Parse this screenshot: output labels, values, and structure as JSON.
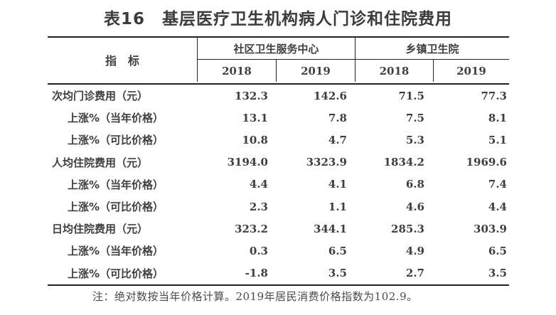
{
  "title": "表16　基层医疗卫生机构病人门诊和住院费用",
  "table": {
    "indicator_header": "指　标",
    "groups": [
      {
        "label": "社区卫生服务中心",
        "years": [
          "2018",
          "2019"
        ]
      },
      {
        "label": "乡镇卫生院",
        "years": [
          "2018",
          "2019"
        ]
      }
    ],
    "rows": [
      {
        "label": "次均门诊费用（元）",
        "indent": 0,
        "values": [
          "132.3",
          "142.6",
          "71.5",
          "77.3"
        ]
      },
      {
        "label": "上涨%（当年价格）",
        "indent": 1,
        "values": [
          "13.1",
          "7.8",
          "7.5",
          "8.1"
        ]
      },
      {
        "label": "上涨%（可比价格）",
        "indent": 1,
        "values": [
          "10.8",
          "4.7",
          "5.3",
          "5.1"
        ]
      },
      {
        "label": "人均住院费用（元）",
        "indent": 0,
        "values": [
          "3194.0",
          "3323.9",
          "1834.2",
          "1969.6"
        ]
      },
      {
        "label": "上涨%（当年价格）",
        "indent": 1,
        "values": [
          "4.4",
          "4.1",
          "6.8",
          "7.4"
        ]
      },
      {
        "label": "上涨%（可比价格）",
        "indent": 1,
        "values": [
          "2.3",
          "1.1",
          "4.6",
          "4.4"
        ]
      },
      {
        "label": "日均住院费用（元）",
        "indent": 0,
        "values": [
          "323.2",
          "344.1",
          "285.3",
          "303.9"
        ]
      },
      {
        "label": "上涨%（当年价格）",
        "indent": 1,
        "values": [
          "0.3",
          "6.5",
          "4.9",
          "6.5"
        ]
      },
      {
        "label": "上涨%（可比价格）",
        "indent": 1,
        "values": [
          "-1.8",
          "3.5",
          "2.7",
          "3.5"
        ]
      }
    ]
  },
  "note": "注：绝对数按当年价格计算。2019年居民消费价格指数为102.9。",
  "colors": {
    "text": "#3f3f42",
    "line": "#222222",
    "background": "#ffffff"
  }
}
